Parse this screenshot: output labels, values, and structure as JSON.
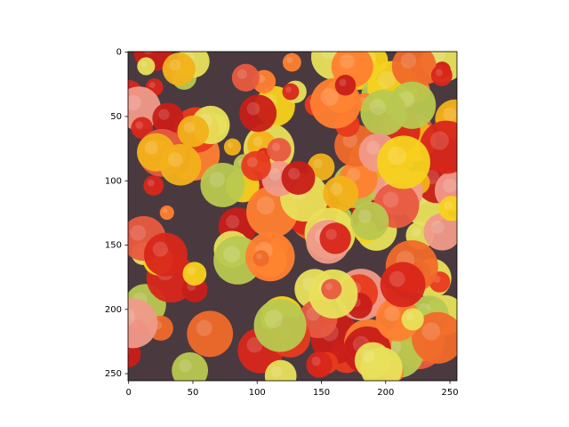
{
  "chart_data": {
    "type": "image",
    "xlim": [
      -0.5,
      255.5
    ],
    "ylim": [
      255.5,
      -0.5
    ],
    "xticks": [
      0,
      50,
      100,
      150,
      200,
      250
    ],
    "yticks": [
      0,
      50,
      100,
      150,
      200,
      250
    ]
  }
}
